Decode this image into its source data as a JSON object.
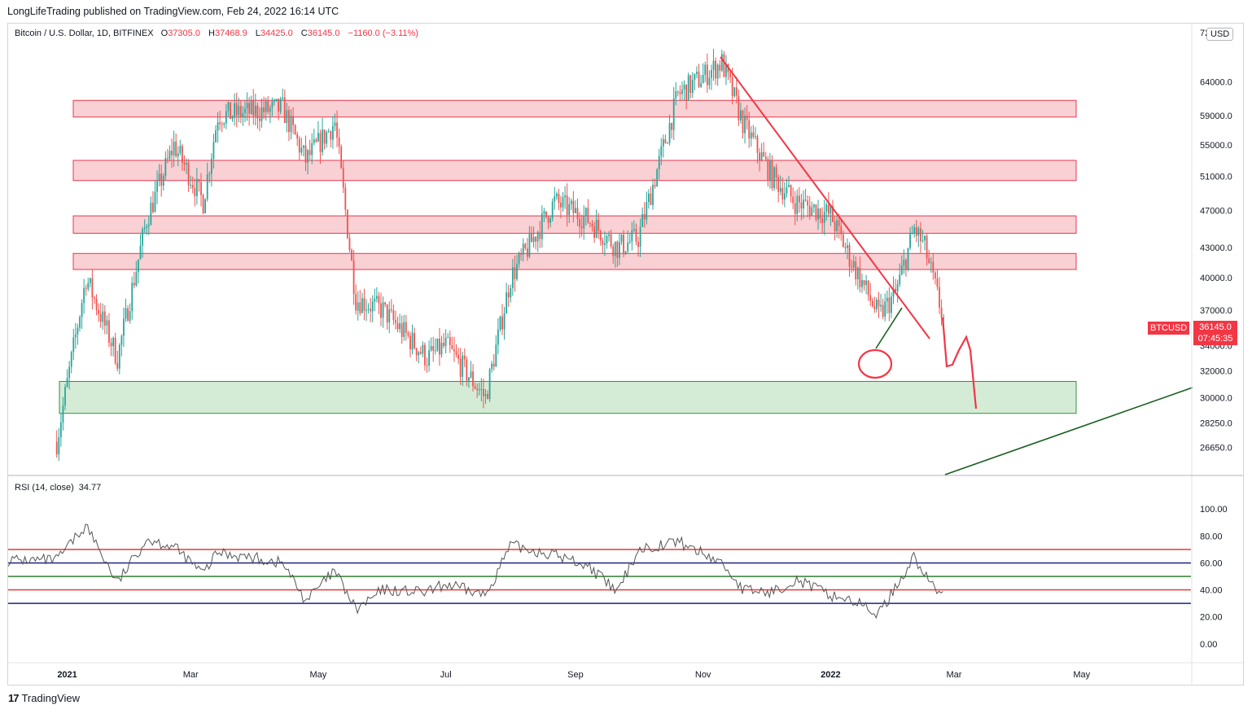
{
  "header": {
    "publish_text": "LongLifeTrading published on TradingView.com, Feb 24, 2022 16:14 UTC"
  },
  "legend": {
    "symbol": "Bitcoin / U.S. Dollar, 1D, BITFINEX",
    "open_label": "O",
    "open": "37305.0",
    "high_label": "H",
    "high": "37468.9",
    "low_label": "L",
    "low": "34425.0",
    "close_label": "C",
    "close": "36145.0",
    "change": "−1160.0 (−3.11%)"
  },
  "rsi_legend": {
    "label": "RSI (14, close)",
    "value": "34.77"
  },
  "currency_button": "USD",
  "price_tag": {
    "symbol": "BTCUSD",
    "price": "36145.0",
    "countdown": "07:45:35"
  },
  "brand": {
    "logo": "17",
    "name": "TradingView"
  },
  "colors": {
    "up": "#26a69a",
    "down": "#ef5350",
    "zone_red": "#f9d0d3",
    "zone_green": "#d4ecd6",
    "drawing_red": "#f23645",
    "drawing_green": "#1b5e20",
    "rsi_line": "#555555"
  },
  "chart_data": [
    {
      "type": "candlestick",
      "x_axis_labels": [
        "2021",
        "Mar",
        "May",
        "Jul",
        "Sep",
        "Nov",
        "2022",
        "Mar",
        "May"
      ],
      "y_axis_labels": [
        "72000.0",
        "64000.0",
        "59000.0",
        "55000.0",
        "51000.0",
        "47000.0",
        "43000.0",
        "40000.0",
        "37000.0",
        "34000.0",
        "32000.0",
        "30000.0",
        "28250.0",
        "26650.0"
      ],
      "y_range": [
        25000,
        72000
      ],
      "log_scale": true,
      "x": [
        "2020-12-27",
        "2021-01-10",
        "2021-01-25",
        "2021-02-08",
        "2021-02-21",
        "2021-03-07",
        "2021-03-14",
        "2021-04-14",
        "2021-04-25",
        "2021-05-09",
        "2021-05-19",
        "2021-06-01",
        "2021-06-22",
        "2021-07-01",
        "2021-07-20",
        "2021-08-01",
        "2021-08-22",
        "2021-09-07",
        "2021-09-21",
        "2021-10-01",
        "2021-10-20",
        "2021-11-10",
        "2021-11-20",
        "2021-12-04",
        "2021-12-15",
        "2022-01-01",
        "2022-01-10",
        "2022-01-24",
        "2022-02-01",
        "2022-02-10",
        "2022-02-15",
        "2022-02-24"
      ],
      "close": [
        27000,
        40000,
        33000,
        46000,
        55000,
        48000,
        59000,
        60000,
        53000,
        58000,
        38000,
        37000,
        33000,
        34000,
        30000,
        40000,
        48000,
        46000,
        43000,
        44000,
        62000,
        67000,
        58000,
        51000,
        48000,
        46500,
        42000,
        36500,
        38500,
        45000,
        43000,
        36145
      ],
      "zones": [
        {
          "kind": "resistance",
          "low": 58800,
          "high": 61200
        },
        {
          "kind": "resistance",
          "low": 50500,
          "high": 53000
        },
        {
          "kind": "resistance",
          "low": 44500,
          "high": 46400
        },
        {
          "kind": "resistance",
          "low": 40800,
          "high": 42400
        },
        {
          "kind": "support",
          "low": 28900,
          "high": 31200
        }
      ]
    },
    {
      "type": "line",
      "name": "RSI (14, close)",
      "y_axis_labels": [
        "100.00",
        "80.00",
        "60.00",
        "40.00",
        "20.00",
        "0.00"
      ],
      "y_range": [
        -8,
        108
      ],
      "levels": [
        70,
        60,
        50,
        40,
        30
      ],
      "x": [
        "2020-12-27",
        "2021-01-10",
        "2021-01-25",
        "2021-02-08",
        "2021-02-21",
        "2021-03-07",
        "2021-03-14",
        "2021-04-14",
        "2021-04-25",
        "2021-05-09",
        "2021-05-19",
        "2021-06-01",
        "2021-06-22",
        "2021-07-01",
        "2021-07-20",
        "2021-08-01",
        "2021-08-22",
        "2021-09-07",
        "2021-09-21",
        "2021-10-01",
        "2021-10-20",
        "2021-11-10",
        "2021-11-20",
        "2021-12-04",
        "2021-12-15",
        "2022-01-01",
        "2022-01-10",
        "2022-01-24",
        "2022-02-01",
        "2022-02-10",
        "2022-02-15",
        "2022-02-24"
      ],
      "values": [
        62,
        88,
        45,
        78,
        72,
        52,
        68,
        60,
        32,
        54,
        25,
        40,
        38,
        44,
        36,
        73,
        66,
        58,
        38,
        70,
        76,
        60,
        40,
        38,
        48,
        36,
        33,
        22,
        42,
        65,
        50,
        34.77
      ]
    }
  ]
}
